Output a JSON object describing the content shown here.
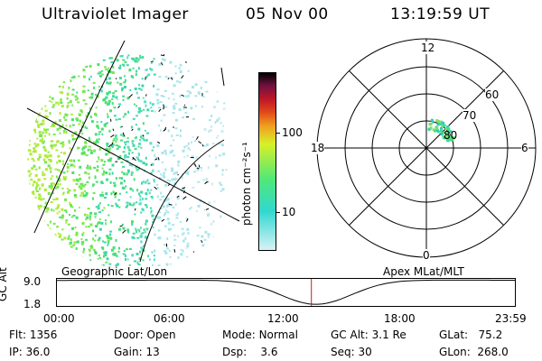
{
  "header": {
    "title": "Ultraviolet Imager",
    "date": "05 Nov 00",
    "time": "13:19:59 UT"
  },
  "colorbar": {
    "unit_label": "photon cm⁻²s⁻¹",
    "ticks": [
      "100",
      "10"
    ]
  },
  "polar": {
    "top_label": "12",
    "bottom_label": "0",
    "left_label": "18",
    "right_label": "6",
    "ring_labels": [
      "60",
      "70",
      "80"
    ]
  },
  "timeline": {
    "axis_label": "GC Alt",
    "left_label": "Geographic Lat/Lon",
    "right_label": "Apex MLat/MLT",
    "y_ticks": [
      "9.0",
      "1.8"
    ],
    "x_ticks": [
      "00:00",
      "06:00",
      "12:00",
      "18:00",
      "23:59"
    ],
    "current_time": "13:19:59"
  },
  "status": {
    "row1": [
      {
        "label": "Flt:",
        "value": "1356"
      },
      {
        "label": "Door:",
        "value": "Open"
      },
      {
        "label": "Mode:",
        "value": "Normal"
      },
      {
        "label": "GC Alt:",
        "value": "3.1 Re"
      },
      {
        "label": "GLat:",
        "value": "75.2"
      }
    ],
    "row2": [
      {
        "label": "IP:",
        "value": "36.0"
      },
      {
        "label": "Gain:",
        "value": "13"
      },
      {
        "label": "Dsp:",
        "value": "3.6"
      },
      {
        "label": "Seq:",
        "value": "30"
      },
      {
        "label": "GLon:",
        "value": "268.0"
      }
    ]
  },
  "colors": {
    "colorbar_stops": [
      "#d8f2f6",
      "#30d8d0",
      "#50e878",
      "#d8f028",
      "#f0a020",
      "#d01818",
      "#901030",
      "#000000"
    ],
    "time_marker": "#c02020"
  }
}
